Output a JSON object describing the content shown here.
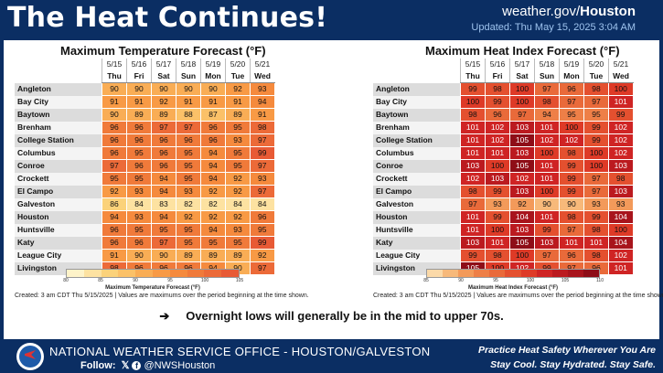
{
  "header": {
    "title": "The Heat Continues!",
    "site_prefix": "weather.gov/",
    "site_office": "Houston",
    "updated": "Updated: Thu May 15, 2025 3:04 AM"
  },
  "days": [
    {
      "date": "5/15",
      "dow": "Thu"
    },
    {
      "date": "5/16",
      "dow": "Fri"
    },
    {
      "date": "5/17",
      "dow": "Sat"
    },
    {
      "date": "5/18",
      "dow": "Sun"
    },
    {
      "date": "5/19",
      "dow": "Mon"
    },
    {
      "date": "5/20",
      "dow": "Tue"
    },
    {
      "date": "5/21",
      "dow": "Wed"
    }
  ],
  "cities": [
    "Angleton",
    "Bay City",
    "Baytown",
    "Brenham",
    "College Station",
    "Columbus",
    "Conroe",
    "Crockett",
    "El Campo",
    "Galveston",
    "Houston",
    "Huntsville",
    "Katy",
    "League City",
    "Livingston"
  ],
  "max_temp": {
    "title": "Maximum Temperature Forecast (°F)",
    "values": [
      [
        90,
        90,
        90,
        90,
        90,
        92,
        93
      ],
      [
        91,
        91,
        92,
        91,
        91,
        91,
        94
      ],
      [
        90,
        89,
        89,
        88,
        87,
        89,
        91
      ],
      [
        96,
        96,
        97,
        97,
        96,
        95,
        98
      ],
      [
        96,
        96,
        96,
        96,
        96,
        93,
        97
      ],
      [
        96,
        95,
        96,
        95,
        94,
        95,
        99
      ],
      [
        97,
        96,
        96,
        95,
        94,
        95,
        97
      ],
      [
        95,
        95,
        94,
        95,
        94,
        92,
        93
      ],
      [
        92,
        93,
        94,
        93,
        92,
        92,
        97
      ],
      [
        86,
        84,
        83,
        82,
        82,
        84,
        84
      ],
      [
        94,
        93,
        94,
        92,
        92,
        92,
        96
      ],
      [
        96,
        95,
        95,
        95,
        94,
        93,
        95
      ],
      [
        96,
        96,
        97,
        95,
        95,
        95,
        99
      ],
      [
        91,
        90,
        90,
        89,
        89,
        89,
        92
      ],
      [
        98,
        96,
        96,
        96,
        94,
        90,
        97
      ]
    ],
    "legend_title": "Maximum Temperature Forecast (°F)",
    "legend_ticks": [
      "80",
      "85",
      "90",
      "95",
      "100",
      "105"
    ]
  },
  "heat_index": {
    "title": "Maximum Heat Index Forecast (°F)",
    "values": [
      [
        99,
        98,
        100,
        97,
        96,
        98,
        100
      ],
      [
        100,
        99,
        100,
        98,
        97,
        97,
        101
      ],
      [
        98,
        96,
        97,
        94,
        95,
        95,
        99
      ],
      [
        101,
        102,
        103,
        101,
        100,
        99,
        102
      ],
      [
        101,
        102,
        105,
        102,
        102,
        99,
        102
      ],
      [
        101,
        101,
        103,
        100,
        98,
        100,
        102
      ],
      [
        103,
        100,
        105,
        101,
        99,
        100,
        103
      ],
      [
        102,
        103,
        102,
        101,
        99,
        97,
        98
      ],
      [
        98,
        99,
        103,
        100,
        99,
        97,
        103
      ],
      [
        97,
        93,
        92,
        90,
        90,
        93,
        93
      ],
      [
        101,
        99,
        104,
        101,
        98,
        99,
        104
      ],
      [
        101,
        100,
        103,
        99,
        97,
        98,
        100
      ],
      [
        103,
        101,
        105,
        103,
        101,
        101,
        104
      ],
      [
        99,
        98,
        100,
        97,
        96,
        98,
        102
      ],
      [
        105,
        100,
        102,
        99,
        97,
        96,
        101
      ]
    ],
    "legend_title": "Maximum Heat Index Forecast (°F)",
    "legend_ticks": [
      "85",
      "90",
      "95",
      "100",
      "105",
      "110"
    ]
  },
  "note": "Created: 3 am CDT Thu 5/15/2025  |  Values are maximums over the period beginning at the time shown.",
  "bottom_line": "Overnight lows will generally be in the mid to upper 70s.",
  "footer": {
    "office": "NATIONAL WEATHER SERVICE OFFICE - HOUSTON/GALVESTON",
    "follow_label": "Follow:",
    "handle": "@NWSHouston",
    "safety1": "Practice Heat Safety Wherever You Are",
    "safety2": "Stay Cool. Stay Hydrated. Stay Safe."
  },
  "colors": {
    "brand": "#0b2e63",
    "updated": "#9ec3ee"
  }
}
